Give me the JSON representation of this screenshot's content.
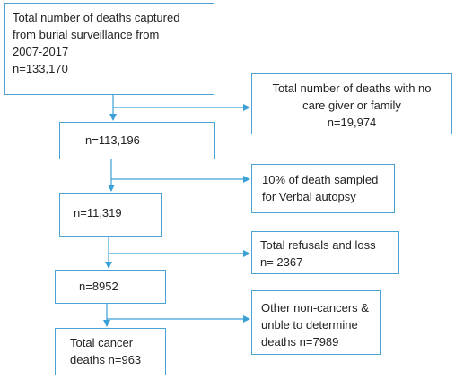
{
  "diagram": {
    "colors": {
      "border": "#4aa3d4",
      "arrow": "#3ba0d6",
      "text": "#222222"
    },
    "nodes": {
      "total_deaths": {
        "lines": [
          "Total number of deaths captured",
          "from burial surveillance from",
          "2007-2017",
          "n=133,170"
        ]
      },
      "no_caregiver": {
        "lines": [
          "Total number of deaths with no",
          "care giver or family",
          "n=19,974"
        ]
      },
      "remaining_1": {
        "lines": [
          "n=113,196"
        ]
      },
      "sampled": {
        "lines": [
          "10% of death sampled",
          "for Verbal autopsy"
        ]
      },
      "remaining_2": {
        "lines": [
          "n=11,319"
        ]
      },
      "refusals": {
        "lines": [
          "Total refusals and loss",
          "n= 2367"
        ]
      },
      "remaining_3": {
        "lines": [
          "n=8952"
        ]
      },
      "non_cancer": {
        "lines": [
          "Other non-cancers &",
          "unble to determine",
          "deaths n=7989"
        ]
      },
      "cancer": {
        "lines": [
          "Total cancer",
          "deaths n=963"
        ]
      }
    }
  }
}
